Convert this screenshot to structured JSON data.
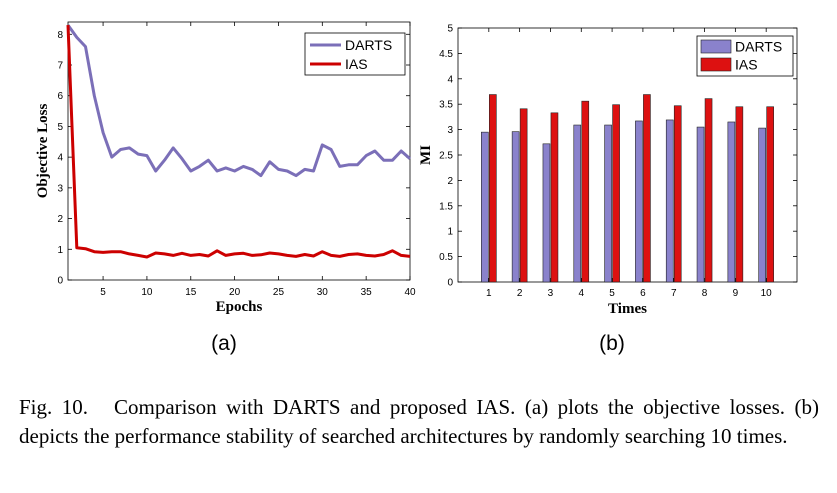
{
  "colors": {
    "darts_line": "#7b6fb8",
    "ias_line": "#cc0000",
    "darts_bar": "#8a82cc",
    "ias_bar": "#dd1111"
  },
  "chart_data": [
    {
      "type": "line",
      "xlabel": "Epochs",
      "ylabel": "Objective Loss",
      "xlim": [
        1,
        40
      ],
      "ylim": [
        0,
        8.4
      ],
      "xticks": [
        5,
        10,
        15,
        20,
        25,
        30,
        35,
        40
      ],
      "yticks": [
        0,
        1,
        2,
        3,
        4,
        5,
        6,
        7,
        8
      ],
      "legend_position": "top-right",
      "grid": false,
      "series": [
        {
          "name": "DARTS",
          "x": [
            1,
            2,
            3,
            4,
            5,
            6,
            7,
            8,
            9,
            10,
            11,
            12,
            13,
            14,
            15,
            16,
            17,
            18,
            19,
            20,
            21,
            22,
            23,
            24,
            25,
            26,
            27,
            28,
            29,
            30,
            31,
            32,
            33,
            34,
            35,
            36,
            37,
            38,
            39,
            40
          ],
          "y": [
            8.3,
            7.9,
            7.6,
            6.0,
            4.8,
            4.0,
            4.25,
            4.3,
            4.1,
            4.05,
            3.55,
            3.9,
            4.3,
            3.95,
            3.55,
            3.7,
            3.9,
            3.55,
            3.65,
            3.55,
            3.7,
            3.6,
            3.4,
            3.85,
            3.6,
            3.55,
            3.4,
            3.6,
            3.55,
            4.4,
            4.25,
            3.7,
            3.75,
            3.75,
            4.05,
            4.2,
            3.9,
            3.9,
            4.2,
            3.95
          ]
        },
        {
          "name": "IAS",
          "x": [
            1,
            2,
            3,
            4,
            5,
            6,
            7,
            8,
            9,
            10,
            11,
            12,
            13,
            14,
            15,
            16,
            17,
            18,
            19,
            20,
            21,
            22,
            23,
            24,
            25,
            26,
            27,
            28,
            29,
            30,
            31,
            32,
            33,
            34,
            35,
            36,
            37,
            38,
            39,
            40
          ],
          "y": [
            8.3,
            1.05,
            1.02,
            0.92,
            0.9,
            0.92,
            0.92,
            0.85,
            0.8,
            0.75,
            0.88,
            0.85,
            0.8,
            0.87,
            0.8,
            0.83,
            0.78,
            0.95,
            0.8,
            0.85,
            0.87,
            0.8,
            0.82,
            0.88,
            0.85,
            0.8,
            0.77,
            0.83,
            0.78,
            0.92,
            0.8,
            0.77,
            0.83,
            0.85,
            0.8,
            0.78,
            0.83,
            0.95,
            0.8,
            0.77
          ]
        }
      ],
      "panel_label": "(a)"
    },
    {
      "type": "bar",
      "xlabel": "Times",
      "ylabel": "MI",
      "ylim": [
        0,
        5
      ],
      "yticks": [
        0,
        0.5,
        1,
        1.5,
        2,
        2.5,
        3,
        3.5,
        4,
        4.5,
        5
      ],
      "ytick_labels": [
        "0",
        "0.5",
        "1",
        "1.5",
        "2",
        "2.5",
        "3",
        "3.5",
        "4",
        "4.5",
        "5"
      ],
      "categories": [
        "1",
        "2",
        "3",
        "4",
        "5",
        "6",
        "7",
        "8",
        "9",
        "10"
      ],
      "legend_position": "top-right",
      "grid": false,
      "series": [
        {
          "name": "DARTS",
          "values": [
            2.95,
            2.96,
            2.72,
            3.09,
            3.09,
            3.17,
            3.19,
            3.05,
            3.15,
            3.03
          ]
        },
        {
          "name": "IAS",
          "values": [
            3.69,
            3.41,
            3.33,
            3.56,
            3.49,
            3.69,
            3.47,
            3.61,
            3.45,
            3.45
          ]
        }
      ],
      "panel_label": "(b)"
    }
  ],
  "caption": {
    "figno": "Fig. 10.",
    "text": "Comparison with DARTS and proposed IAS. (a) plots the objective losses. (b) depicts the performance stability of searched architectures by randomly searching 10 times."
  }
}
